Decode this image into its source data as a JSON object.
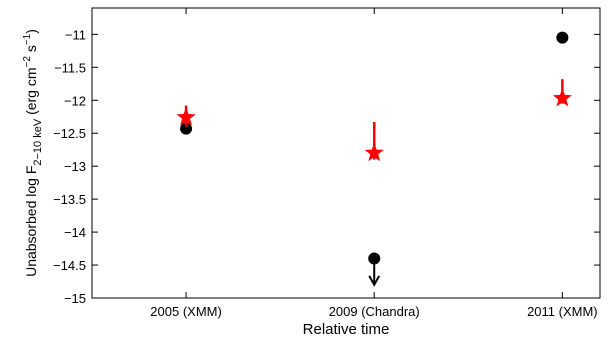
{
  "chart_data": {
    "type": "scatter",
    "title": "",
    "xlabel": "Relative time",
    "ylabel_parts": {
      "base": "Unabsorbed log F",
      "subscript": "2−10 keV",
      "units_open": " (erg cm",
      "exp1": "−2",
      "units_mid": " s",
      "exp2": "−1",
      "units_close": ")"
    },
    "categories": [
      "2005 (XMM)",
      "2009 (Chandra)",
      "2011 (XMM)"
    ],
    "xlim": [
      0.5,
      3.2
    ],
    "ylim": [
      -15,
      -10.6
    ],
    "yticks": [
      -15,
      -14.5,
      -14,
      -13.5,
      -13,
      -12.5,
      -12,
      -11.5,
      -11
    ],
    "ytick_labels": [
      "−15",
      "−14.5",
      "−14",
      "−13.5",
      "−13",
      "−12.5",
      "−12",
      "−11.5",
      "−11"
    ],
    "series": [
      {
        "marker": "circle",
        "color": "#000000",
        "points": [
          {
            "x": 1,
            "y": -12.43
          },
          {
            "x": 2,
            "y": -14.4,
            "upper_limit": true,
            "arrow_to": -14.8
          },
          {
            "x": 3,
            "y": -11.05
          }
        ]
      },
      {
        "marker": "star",
        "color": "#ff0000",
        "points": [
          {
            "x": 1,
            "y": -12.26,
            "err_low": -12.4,
            "err_high": -12.08
          },
          {
            "x": 2,
            "y": -12.8,
            "err_low": -12.9,
            "err_high": -12.33
          },
          {
            "x": 3,
            "y": -11.97,
            "err_low": -12.05,
            "err_high": -11.68
          }
        ]
      }
    ]
  }
}
